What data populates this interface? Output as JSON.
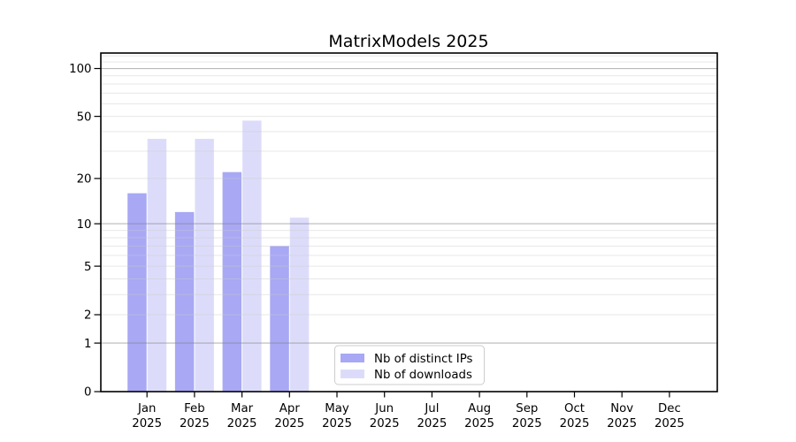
{
  "chart_data": {
    "type": "bar",
    "title": "MatrixModels 2025",
    "year_label": "2025",
    "categories": [
      "Jan 2025",
      "Feb 2025",
      "Mar 2025",
      "Apr 2025",
      "May 2025",
      "Jun 2025",
      "Jul 2025",
      "Aug 2025",
      "Sep 2025",
      "Oct 2025",
      "Nov 2025",
      "Dec 2025"
    ],
    "months": [
      "Jan",
      "Feb",
      "Mar",
      "Apr",
      "May",
      "Jun",
      "Jul",
      "Aug",
      "Sep",
      "Oct",
      "Nov",
      "Dec"
    ],
    "series": [
      {
        "name": "Nb of distinct IPs",
        "color": "#a8a8f5",
        "values": [
          16,
          12,
          22,
          7,
          null,
          null,
          null,
          null,
          null,
          null,
          null,
          null
        ]
      },
      {
        "name": "Nb of downloads",
        "color": "#dcdcfa",
        "values": [
          36,
          36,
          47,
          11,
          null,
          null,
          null,
          null,
          null,
          null,
          null,
          null
        ]
      }
    ],
    "xlabel": "",
    "ylabel": "",
    "yscale": "log1p",
    "ylim": [
      0,
      125
    ],
    "y_ticks": [
      0,
      1,
      2,
      5,
      10,
      20,
      50,
      100
    ],
    "grid": true,
    "grid_major_values": [
      1,
      10,
      100
    ],
    "grid_minor_values": [
      2,
      3,
      4,
      5,
      6,
      7,
      8,
      9,
      20,
      30,
      40,
      50,
      60,
      70,
      80,
      90,
      110,
      120
    ],
    "legend_position": "lower center-left inside plot",
    "colors": {
      "major_grid": "#b9b9b9",
      "minor_grid": "#e7e7e7",
      "spine": "#000000",
      "legend_border": "#cccccc",
      "background": "#ffffff"
    }
  }
}
